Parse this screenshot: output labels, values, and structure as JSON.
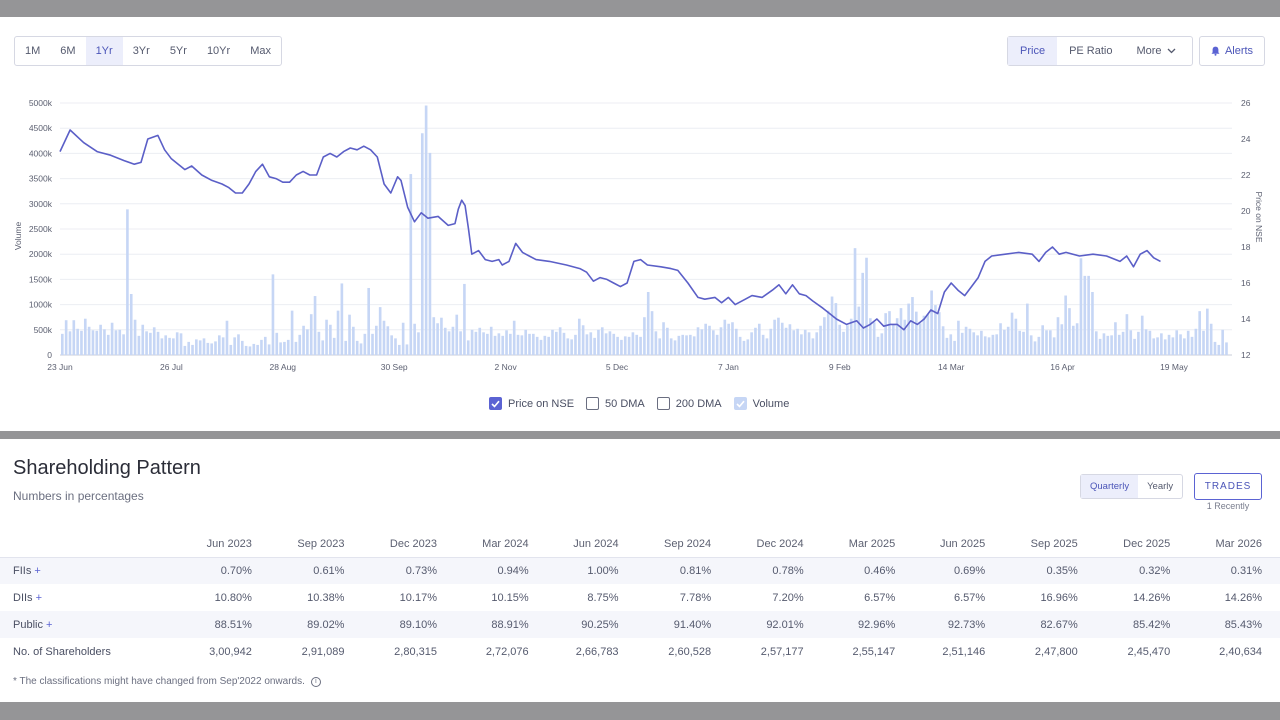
{
  "range_tabs": [
    {
      "label": "1M",
      "active": false
    },
    {
      "label": "6M",
      "active": false
    },
    {
      "label": "1Yr",
      "active": true
    },
    {
      "label": "3Yr",
      "active": false
    },
    {
      "label": "5Yr",
      "active": false
    },
    {
      "label": "10Yr",
      "active": false
    },
    {
      "label": "Max",
      "active": false
    }
  ],
  "mode_tabs": {
    "price": "Price",
    "pe": "PE Ratio",
    "more": "More"
  },
  "alerts_label": "Alerts",
  "colors": {
    "accent": "#5b63d3",
    "volume": "#c6d6f5",
    "price_line": "#5b5fc7"
  },
  "chart_data": {
    "type": "line",
    "ylabel_left": "Volume",
    "ylabel_right": "Price on NSE",
    "y_left_ticks": [
      "0",
      "500k",
      "1000k",
      "1500k",
      "2000k",
      "2500k",
      "3000k",
      "3500k",
      "4000k",
      "4500k",
      "5000k"
    ],
    "y_left_range": [
      0,
      5000
    ],
    "y_right_ticks": [
      "12",
      "14",
      "16",
      "18",
      "20",
      "22",
      "24",
      "26"
    ],
    "y_right_range": [
      12,
      26
    ],
    "x_ticks": [
      {
        "label": "23 Jun",
        "day": 0
      },
      {
        "label": "26 Jul",
        "day": 33
      },
      {
        "label": "28 Aug",
        "day": 66
      },
      {
        "label": "30 Sep",
        "day": 99
      },
      {
        "label": "2 Nov",
        "day": 132
      },
      {
        "label": "5 Dec",
        "day": 165
      },
      {
        "label": "7 Jan",
        "day": 198
      },
      {
        "label": "9 Feb",
        "day": 231
      },
      {
        "label": "14 Mar",
        "day": 264
      },
      {
        "label": "16 Apr",
        "day": 297
      },
      {
        "label": "19 May",
        "day": 330
      }
    ],
    "grid": true,
    "series": [
      {
        "name": "Price on NSE",
        "type": "line",
        "points": [
          [
            0,
            23.3
          ],
          [
            3,
            24.5
          ],
          [
            7,
            23.8
          ],
          [
            11,
            23.3
          ],
          [
            15,
            23.1
          ],
          [
            19,
            22.8
          ],
          [
            22,
            22.6
          ],
          [
            24,
            22.7
          ],
          [
            26,
            24.0
          ],
          [
            29,
            24.2
          ],
          [
            31,
            23.4
          ],
          [
            33,
            22.9
          ],
          [
            35,
            22.6
          ],
          [
            37,
            22.3
          ],
          [
            39,
            22.5
          ],
          [
            42,
            22.0
          ],
          [
            45,
            21.7
          ],
          [
            48,
            21.5
          ],
          [
            50,
            21.3
          ],
          [
            52,
            21.0
          ],
          [
            54,
            21.0
          ],
          [
            56,
            21.5
          ],
          [
            58,
            22.2
          ],
          [
            60,
            22.6
          ],
          [
            62,
            21.9
          ],
          [
            64,
            21.8
          ],
          [
            66,
            21.6
          ],
          [
            68,
            21.6
          ],
          [
            70,
            22.0
          ],
          [
            72,
            22.2
          ],
          [
            74,
            22.0
          ],
          [
            76,
            22.0
          ],
          [
            78,
            23.0
          ],
          [
            80,
            23.2
          ],
          [
            82,
            23.0
          ],
          [
            84,
            23.3
          ],
          [
            86,
            23.5
          ],
          [
            88,
            23.4
          ],
          [
            90,
            23.6
          ],
          [
            92,
            23.4
          ],
          [
            94,
            23.0
          ],
          [
            96,
            21.5
          ],
          [
            98,
            21.0
          ],
          [
            100,
            21.9
          ],
          [
            101,
            21.7
          ],
          [
            103,
            20.2
          ],
          [
            105,
            19.4
          ],
          [
            107,
            19.9
          ],
          [
            109,
            19.6
          ],
          [
            112,
            19.7
          ],
          [
            115,
            19.2
          ],
          [
            117,
            19.3
          ],
          [
            118,
            20.1
          ],
          [
            119,
            20.6
          ],
          [
            120,
            20.3
          ],
          [
            121,
            19.0
          ],
          [
            122,
            17.6
          ],
          [
            124,
            17.8
          ],
          [
            126,
            17.3
          ],
          [
            128,
            17.2
          ],
          [
            130,
            17.3
          ],
          [
            131,
            17.0
          ],
          [
            133,
            17.2
          ],
          [
            135,
            18.2
          ],
          [
            137,
            17.7
          ],
          [
            139,
            17.5
          ],
          [
            141,
            17.3
          ],
          [
            145,
            17.2
          ],
          [
            150,
            17.0
          ],
          [
            154,
            16.8
          ],
          [
            156,
            16.6
          ],
          [
            158,
            16.1
          ],
          [
            160,
            16.3
          ],
          [
            162,
            16.2
          ],
          [
            164,
            16.0
          ],
          [
            166,
            15.8
          ],
          [
            168,
            16.0
          ],
          [
            170,
            17.2
          ],
          [
            172,
            17.3
          ],
          [
            174,
            17.0
          ],
          [
            178,
            16.9
          ],
          [
            181,
            16.8
          ],
          [
            183,
            16.7
          ],
          [
            186,
            16.0
          ],
          [
            189,
            15.2
          ],
          [
            191,
            15.1
          ],
          [
            194,
            15.2
          ],
          [
            196,
            14.9
          ],
          [
            198,
            15.2
          ],
          [
            200,
            14.8
          ],
          [
            203,
            15.1
          ],
          [
            205,
            15.3
          ],
          [
            208,
            15.2
          ],
          [
            211,
            15.6
          ],
          [
            213,
            15.9
          ],
          [
            215,
            15.4
          ],
          [
            217,
            15.9
          ],
          [
            219,
            15.4
          ],
          [
            221,
            15.3
          ],
          [
            223,
            15.0
          ],
          [
            226,
            14.6
          ],
          [
            228,
            14.3
          ],
          [
            230,
            14.0
          ],
          [
            233,
            13.7
          ],
          [
            236,
            13.9
          ],
          [
            238,
            13.5
          ],
          [
            240,
            13.7
          ],
          [
            242,
            14.0
          ],
          [
            244,
            13.6
          ],
          [
            246,
            13.7
          ],
          [
            248,
            13.7
          ],
          [
            250,
            13.4
          ],
          [
            252,
            13.9
          ],
          [
            254,
            13.7
          ],
          [
            256,
            14.0
          ],
          [
            258,
            14.5
          ],
          [
            260,
            14.3
          ],
          [
            262,
            15.5
          ],
          [
            264,
            16.0
          ],
          [
            266,
            15.6
          ],
          [
            268,
            15.3
          ],
          [
            270,
            15.8
          ],
          [
            272,
            16.3
          ],
          [
            274,
            17.2
          ],
          [
            276,
            17.5
          ],
          [
            280,
            17.6
          ],
          [
            284,
            17.7
          ],
          [
            288,
            17.6
          ],
          [
            290,
            17.2
          ],
          [
            292,
            17.7
          ],
          [
            294,
            18.0
          ],
          [
            296,
            17.6
          ],
          [
            298,
            17.7
          ],
          [
            302,
            17.5
          ],
          [
            306,
            17.6
          ],
          [
            310,
            17.5
          ],
          [
            314,
            17.2
          ],
          [
            316,
            17.5
          ],
          [
            318,
            16.9
          ],
          [
            320,
            17.6
          ],
          [
            322,
            17.8
          ],
          [
            324,
            17.4
          ],
          [
            326,
            17.2
          ]
        ]
      },
      {
        "name": "Volume",
        "type": "bar",
        "values_k": [
          420,
          690,
          470,
          690,
          520,
          480,
          720,
          560,
          490,
          480,
          600,
          510,
          400,
          640,
          490,
          500,
          410,
          2890,
          1210,
          700,
          380,
          600,
          470,
          440,
          550,
          460,
          330,
          390,
          340,
          330,
          450,
          430,
          180,
          260,
          200,
          310,
          290,
          330,
          240,
          230,
          270,
          390,
          350,
          680,
          200,
          350,
          410,
          280,
          180,
          170,
          220,
          200,
          300,
          360,
          210,
          1600,
          440,
          250,
          260,
          300,
          880,
          260,
          400,
          580,
          510,
          810,
          1170,
          460,
          290,
          700,
          600,
          340,
          880,
          1420,
          280,
          800,
          560,
          280,
          230,
          420,
          1330,
          420,
          580,
          950,
          680,
          570,
          390,
          330,
          200,
          640,
          210,
          3590,
          620,
          450,
          4400,
          4950,
          4010,
          750,
          630,
          740,
          540,
          470,
          560,
          800,
          470,
          1410,
          290,
          500,
          460,
          540,
          450,
          420,
          560,
          380,
          430,
          380,
          490,
          420,
          680,
          400,
          390,
          500,
          420,
          420,
          360,
          300,
          380,
          360,
          500,
          460,
          550,
          440,
          330,
          310,
          400,
          720,
          590,
          410,
          450,
          340,
          500,
          550,
          430,
          470,
          420,
          360,
          300,
          370,
          360,
          450,
          400,
          360,
          750,
          1250,
          870,
          470,
          330,
          650,
          540,
          330,
          290,
          380,
          400,
          390,
          400,
          370,
          550,
          510,
          620,
          580,
          490,
          400,
          550,
          700,
          620,
          650,
          520,
          360,
          280,
          310,
          450,
          540,
          620,
          400,
          330,
          520,
          700,
          740,
          640,
          540,
          610,
          490,
          520,
          410,
          500,
          450,
          330,
          450,
          580,
          750,
          880,
          1160,
          1030,
          600,
          460,
          590,
          720,
          2120,
          960,
          1630,
          1930,
          730,
          650,
          360,
          430,
          830,
          870,
          600,
          730,
          930,
          700,
          1020,
          1150,
          860,
          630,
          780,
          810,
          1280,
          990,
          850,
          570,
          340,
          410,
          280,
          680,
          440,
          560,
          520,
          450,
          390,
          480,
          370,
          350,
          400,
          410,
          630,
          500,
          560,
          840,
          720,
          480,
          460,
          1020,
          390,
          270,
          360,
          590,
          490,
          490,
          350,
          750,
          610,
          1180,
          930,
          580,
          630,
          1920,
          1570,
          1570,
          1250,
          470,
          320,
          430,
          380,
          390,
          650,
          400,
          460,
          810,
          490,
          320,
          460,
          780,
          510,
          480,
          330,
          350,
          430,
          310,
          400,
          350,
          490,
          410,
          330,
          480,
          360,
          520,
          870,
          480,
          920,
          620,
          260,
          200,
          500,
          250
        ]
      }
    ]
  },
  "legend": [
    {
      "label": "Price on NSE",
      "checked": true
    },
    {
      "label": "50 DMA",
      "checked": false
    },
    {
      "label": "200 DMA",
      "checked": false
    },
    {
      "label": "Volume",
      "checked": true
    }
  ],
  "shareholding": {
    "title": "Shareholding Pattern",
    "subtitle": "Numbers in percentages",
    "toggle": {
      "quarterly": "Quarterly",
      "yearly": "Yearly"
    },
    "trades_label": "TRADES",
    "trades_sub": "1 Recently",
    "columns": [
      "Jun 2023",
      "Sep 2023",
      "Dec 2023",
      "Mar 2024",
      "Jun 2024",
      "Sep 2024",
      "Dec 2024",
      "Mar 2025",
      "Jun 2025",
      "Sep 2025",
      "Dec 2025",
      "Mar 2026"
    ],
    "rows": [
      {
        "label": "FIIs",
        "plus": "+",
        "values": [
          "0.70%",
          "0.61%",
          "0.73%",
          "0.94%",
          "1.00%",
          "0.81%",
          "0.78%",
          "0.46%",
          "0.69%",
          "0.35%",
          "0.32%",
          "0.31%"
        ]
      },
      {
        "label": "DIIs",
        "plus": "+",
        "values": [
          "10.80%",
          "10.38%",
          "10.17%",
          "10.15%",
          "8.75%",
          "7.78%",
          "7.20%",
          "6.57%",
          "6.57%",
          "16.96%",
          "14.26%",
          "14.26%"
        ]
      },
      {
        "label": "Public",
        "plus": "+",
        "values": [
          "88.51%",
          "89.02%",
          "89.10%",
          "88.91%",
          "90.25%",
          "91.40%",
          "92.01%",
          "92.96%",
          "92.73%",
          "82.67%",
          "85.42%",
          "85.43%"
        ]
      },
      {
        "label": "No. of Shareholders",
        "plus": "",
        "values": [
          "3,00,942",
          "2,91,089",
          "2,80,315",
          "2,72,076",
          "2,66,783",
          "2,60,528",
          "2,57,177",
          "2,55,147",
          "2,51,146",
          "2,47,800",
          "2,45,470",
          "2,40,634"
        ]
      }
    ],
    "footnote": "* The classifications might have changed from Sep'2022 onwards."
  }
}
